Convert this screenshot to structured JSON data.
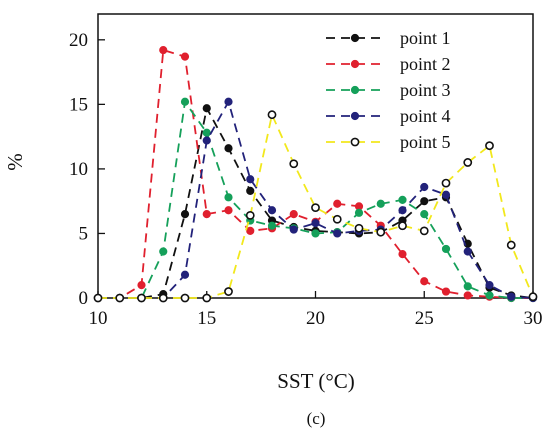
{
  "chart_data": {
    "type": "line",
    "title": "",
    "panel_label": "(c)",
    "xlabel": "SST (°C)",
    "ylabel": "%",
    "xlim": [
      10,
      30
    ],
    "ylim": [
      0,
      22
    ],
    "xticks": [
      10,
      15,
      20,
      25,
      30
    ],
    "yticks": [
      0,
      5,
      10,
      15,
      20
    ],
    "grid": false,
    "legend_position": "top-right",
    "x": [
      10,
      11,
      12,
      13,
      14,
      15,
      16,
      17,
      18,
      19,
      20,
      21,
      22,
      23,
      24,
      25,
      26,
      27,
      28,
      29,
      30
    ],
    "series": [
      {
        "name": "point 1",
        "color": "#111111",
        "marker_fill": "#111111",
        "values": [
          0,
          0,
          0,
          0.3,
          6.5,
          14.7,
          11.6,
          8.3,
          6.0,
          5.5,
          5.2,
          5.1,
          5.0,
          5.1,
          6.0,
          7.5,
          7.8,
          4.2,
          0.8,
          0.2,
          0
        ]
      },
      {
        "name": "point 2",
        "color": "#e0202e",
        "marker_fill": "#e0202e",
        "values": [
          0,
          0,
          1.0,
          19.2,
          18.7,
          6.5,
          6.8,
          5.2,
          5.4,
          6.5,
          5.9,
          7.3,
          7.1,
          5.6,
          3.4,
          1.3,
          0.5,
          0.2,
          0.1,
          0,
          0
        ]
      },
      {
        "name": "point 3",
        "color": "#15a05a",
        "marker_fill": "#15a05a",
        "values": [
          0,
          0,
          0,
          3.6,
          15.2,
          12.8,
          7.8,
          6.0,
          5.6,
          5.4,
          5.0,
          5.1,
          6.6,
          7.3,
          7.6,
          6.5,
          3.8,
          0.9,
          0.2,
          0,
          0
        ]
      },
      {
        "name": "point 4",
        "color": "#22227a",
        "marker_fill": "#22227a",
        "values": [
          0,
          0,
          0,
          0,
          1.8,
          12.2,
          15.2,
          9.2,
          6.8,
          5.3,
          5.8,
          5.0,
          5.2,
          5.3,
          6.8,
          8.6,
          8.0,
          3.6,
          1.0,
          0.1,
          0
        ]
      },
      {
        "name": "point 5",
        "color": "#f2e81c",
        "marker_fill": "#ffffff",
        "marker_stroke": "#111111",
        "values": [
          0,
          0,
          0,
          0,
          0,
          0,
          0.5,
          6.4,
          14.2,
          10.4,
          7.0,
          6.1,
          5.4,
          5.1,
          5.6,
          5.2,
          8.9,
          10.5,
          11.8,
          4.1,
          0.1
        ]
      }
    ]
  }
}
